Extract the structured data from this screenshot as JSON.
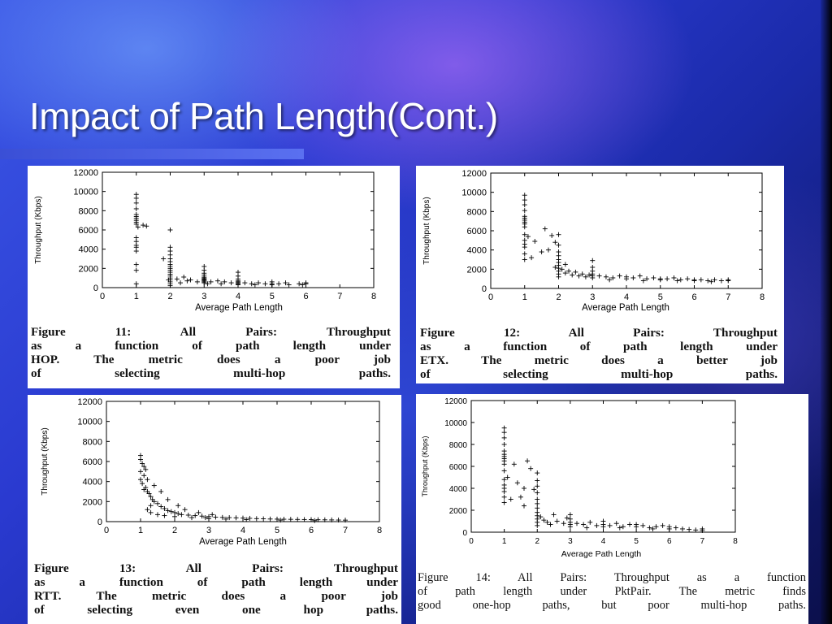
{
  "slide": {
    "title": "Impact of Path Length(Cont.)",
    "colors": {
      "title": "#ffffff",
      "rule": "#4a60e6",
      "marker": "#000000"
    }
  },
  "chart_data": [
    {
      "type": "scatter",
      "title": "",
      "xlabel": "Average Path Length",
      "ylabel": "Throughput (Kbps)",
      "xlim": [
        0,
        8
      ],
      "ylim": [
        0,
        12000
      ],
      "xticks": [
        "0",
        "1",
        "2",
        "3",
        "4",
        "5",
        "6",
        "7",
        "8"
      ],
      "yticks": [
        "0",
        "2000",
        "4000",
        "6000",
        "8000",
        "10000",
        "12000"
      ],
      "grid": false,
      "caption": [
        "Figure 11: All Pairs: Throughput",
        "as a function of path length under",
        "HOP. The metric does a poor job",
        "of selecting multi-hop paths."
      ],
      "points": [
        [
          1,
          9700
        ],
        [
          1,
          9300
        ],
        [
          1,
          8800
        ],
        [
          1,
          8200
        ],
        [
          1,
          7600
        ],
        [
          1,
          7400
        ],
        [
          1,
          7200
        ],
        [
          1,
          7000
        ],
        [
          1,
          6800
        ],
        [
          1,
          6600
        ],
        [
          1,
          5200
        ],
        [
          1,
          4800
        ],
        [
          1,
          4400
        ],
        [
          1,
          4200
        ],
        [
          1,
          3800
        ],
        [
          1,
          2400
        ],
        [
          1,
          1800
        ],
        [
          1,
          400
        ],
        [
          1.05,
          6300
        ],
        [
          1.3,
          6400
        ],
        [
          1.2,
          6500
        ],
        [
          1.8,
          3000
        ],
        [
          2,
          6000
        ],
        [
          2,
          4200
        ],
        [
          2,
          3800
        ],
        [
          2,
          3400
        ],
        [
          2,
          3000
        ],
        [
          2,
          2700
        ],
        [
          2,
          2400
        ],
        [
          2,
          2200
        ],
        [
          2,
          2000
        ],
        [
          2,
          1800
        ],
        [
          2,
          1600
        ],
        [
          2,
          1400
        ],
        [
          2,
          1200
        ],
        [
          2,
          1000
        ],
        [
          2,
          800
        ],
        [
          2,
          600
        ],
        [
          2,
          400
        ],
        [
          2,
          200
        ],
        [
          1.95,
          800
        ],
        [
          2.2,
          900
        ],
        [
          2.4,
          1100
        ],
        [
          2.6,
          800
        ],
        [
          2.8,
          600
        ],
        [
          3,
          2200
        ],
        [
          3,
          1800
        ],
        [
          3,
          1500
        ],
        [
          3,
          1300
        ],
        [
          3,
          1100
        ],
        [
          3,
          1000
        ],
        [
          3,
          900
        ],
        [
          3,
          800
        ],
        [
          3,
          700
        ],
        [
          3,
          600
        ],
        [
          3,
          500
        ],
        [
          3.2,
          600
        ],
        [
          3.4,
          700
        ],
        [
          3.5,
          400
        ],
        [
          3.6,
          600
        ],
        [
          3.8,
          500
        ],
        [
          4,
          1600
        ],
        [
          4,
          1200
        ],
        [
          4,
          900
        ],
        [
          4,
          700
        ],
        [
          4,
          600
        ],
        [
          4,
          500
        ],
        [
          4,
          400
        ],
        [
          4,
          300
        ],
        [
          4.2,
          500
        ],
        [
          4.4,
          400
        ],
        [
          4.5,
          300
        ],
        [
          4.6,
          500
        ],
        [
          4.8,
          400
        ],
        [
          5,
          600
        ],
        [
          5,
          400
        ],
        [
          5,
          300
        ],
        [
          5.2,
          400
        ],
        [
          5.4,
          500
        ],
        [
          5.5,
          300
        ],
        [
          5.8,
          400
        ],
        [
          6,
          500
        ],
        [
          6,
          400
        ],
        [
          5.9,
          300
        ],
        [
          3.1,
          400
        ],
        [
          2.3,
          500
        ],
        [
          2.5,
          700
        ]
      ]
    },
    {
      "type": "scatter",
      "title": "",
      "xlabel": "Average Path Length",
      "ylabel": "Throughput (Kbps)",
      "xlim": [
        0,
        8
      ],
      "ylim": [
        0,
        12000
      ],
      "xticks": [
        "0",
        "1",
        "2",
        "3",
        "4",
        "5",
        "6",
        "7",
        "8"
      ],
      "yticks": [
        "0",
        "2000",
        "4000",
        "6000",
        "8000",
        "10000",
        "12000"
      ],
      "grid": false,
      "caption": [
        "Figure 12: All Pairs: Throughput",
        "as a function of path length under",
        "ETX. The metric does a better job",
        "of selecting multi-hop paths."
      ],
      "points": [
        [
          1,
          9700
        ],
        [
          1,
          9200
        ],
        [
          1,
          8700
        ],
        [
          1,
          8100
        ],
        [
          1,
          7500
        ],
        [
          1,
          7300
        ],
        [
          1,
          7100
        ],
        [
          1,
          6900
        ],
        [
          1,
          6700
        ],
        [
          1,
          6400
        ],
        [
          1,
          5600
        ],
        [
          1,
          5000
        ],
        [
          1,
          4600
        ],
        [
          1,
          4300
        ],
        [
          1,
          3600
        ],
        [
          1,
          3000
        ],
        [
          1.2,
          3200
        ],
        [
          1.1,
          5400
        ],
        [
          1.3,
          4900
        ],
        [
          1.6,
          6200
        ],
        [
          1.7,
          4000
        ],
        [
          1.8,
          5500
        ],
        [
          1.9,
          4800
        ],
        [
          2,
          5600
        ],
        [
          2,
          4500
        ],
        [
          2,
          3800
        ],
        [
          2,
          3400
        ],
        [
          2,
          3000
        ],
        [
          2,
          2700
        ],
        [
          2,
          2400
        ],
        [
          2,
          2100
        ],
        [
          2,
          1800
        ],
        [
          2,
          1500
        ],
        [
          2,
          1200
        ],
        [
          2.1,
          2000
        ],
        [
          2.2,
          1600
        ],
        [
          2.3,
          1800
        ],
        [
          2.4,
          1400
        ],
        [
          2.5,
          1700
        ],
        [
          2.6,
          1300
        ],
        [
          2.7,
          1500
        ],
        [
          2.8,
          1200
        ],
        [
          2.9,
          1400
        ],
        [
          3,
          2900
        ],
        [
          3,
          2200
        ],
        [
          3,
          1800
        ],
        [
          3,
          1500
        ],
        [
          3,
          1300
        ],
        [
          3,
          1100
        ],
        [
          3.2,
          1300
        ],
        [
          3.4,
          1200
        ],
        [
          3.6,
          1100
        ],
        [
          3.8,
          1300
        ],
        [
          4,
          1200
        ],
        [
          4,
          1000
        ],
        [
          4.2,
          1100
        ],
        [
          4.4,
          1300
        ],
        [
          4.6,
          1000
        ],
        [
          4.8,
          1100
        ],
        [
          5,
          1000
        ],
        [
          5,
          900
        ],
        [
          5.2,
          1000
        ],
        [
          5.4,
          1100
        ],
        [
          5.6,
          900
        ],
        [
          5.8,
          1000
        ],
        [
          6,
          900
        ],
        [
          6,
          800
        ],
        [
          6.2,
          900
        ],
        [
          6.4,
          800
        ],
        [
          6.6,
          900
        ],
        [
          6.8,
          800
        ],
        [
          7,
          800
        ],
        [
          7,
          900
        ],
        [
          3.5,
          900
        ],
        [
          4.5,
          800
        ],
        [
          5.5,
          800
        ],
        [
          6.5,
          700
        ],
        [
          2.2,
          2500
        ],
        [
          1.5,
          3800
        ],
        [
          1.9,
          2200
        ]
      ]
    },
    {
      "type": "scatter",
      "title": "",
      "xlabel": "Average Path Length",
      "ylabel": "Throughput (Kbps)",
      "xlim": [
        0,
        8
      ],
      "ylim": [
        0,
        12000
      ],
      "xticks": [
        "0",
        "1",
        "2",
        "3",
        "4",
        "5",
        "6",
        "7",
        "8"
      ],
      "yticks": [
        "0",
        "2000",
        "4000",
        "6000",
        "8000",
        "10000",
        "12000"
      ],
      "grid": false,
      "caption": [
        "Figure 13: All Pairs: Throughput",
        "as a function of path length under",
        "RTT. The metric does a poor job",
        "of selecting even one hop paths."
      ],
      "points": [
        [
          1,
          6600
        ],
        [
          1,
          6200
        ],
        [
          1.05,
          5800
        ],
        [
          1.1,
          5500
        ],
        [
          1.15,
          5200
        ],
        [
          1,
          5000
        ],
        [
          1.1,
          4600
        ],
        [
          1.2,
          4200
        ],
        [
          1.05,
          3800
        ],
        [
          1.15,
          3400
        ],
        [
          1.1,
          3200
        ],
        [
          1.2,
          3000
        ],
        [
          1.25,
          2800
        ],
        [
          1.3,
          2500
        ],
        [
          1.35,
          2200
        ],
        [
          1.4,
          2000
        ],
        [
          1.5,
          1800
        ],
        [
          1.6,
          1500
        ],
        [
          1.7,
          1300
        ],
        [
          1.8,
          1100
        ],
        [
          1.9,
          1000
        ],
        [
          2,
          900
        ],
        [
          2.1,
          800
        ],
        [
          2.2,
          700
        ],
        [
          2.4,
          650
        ],
        [
          2.6,
          600
        ],
        [
          2.8,
          550
        ],
        [
          3,
          500
        ],
        [
          3.2,
          450
        ],
        [
          3.4,
          420
        ],
        [
          3.6,
          400
        ],
        [
          3.8,
          380
        ],
        [
          4,
          350
        ],
        [
          4.2,
          330
        ],
        [
          4.4,
          300
        ],
        [
          4.6,
          280
        ],
        [
          4.8,
          260
        ],
        [
          5,
          250
        ],
        [
          5.2,
          240
        ],
        [
          5.4,
          230
        ],
        [
          5.6,
          220
        ],
        [
          5.8,
          210
        ],
        [
          6,
          200
        ],
        [
          6.2,
          190
        ],
        [
          6.4,
          180
        ],
        [
          6.6,
          170
        ],
        [
          6.8,
          160
        ],
        [
          7,
          150
        ],
        [
          1.2,
          1200
        ],
        [
          1.3,
          900
        ],
        [
          1.5,
          700
        ],
        [
          1.7,
          600
        ],
        [
          2,
          500
        ],
        [
          2.5,
          400
        ],
        [
          3,
          300
        ],
        [
          3.5,
          250
        ],
        [
          1.6,
          3000
        ],
        [
          1.4,
          3600
        ],
        [
          1.8,
          2200
        ],
        [
          2.1,
          1600
        ],
        [
          2.3,
          1200
        ],
        [
          2.7,
          900
        ],
        [
          3.1,
          700
        ],
        [
          1.0,
          4200
        ],
        [
          1.3,
          1600
        ],
        [
          2.9,
          400
        ],
        [
          4.1,
          200
        ],
        [
          5.1,
          150
        ],
        [
          6.1,
          100
        ]
      ]
    },
    {
      "type": "scatter",
      "title": "",
      "xlabel": "Average Path Length",
      "ylabel": "Throughput (Kbps)",
      "xlim": [
        0,
        8
      ],
      "ylim": [
        0,
        12000
      ],
      "xticks": [
        "0",
        "1",
        "2",
        "3",
        "4",
        "5",
        "6",
        "7",
        "8"
      ],
      "yticks": [
        "0",
        "2000",
        "4000",
        "6000",
        "8000",
        "10000",
        "12000"
      ],
      "grid": false,
      "caption": [
        "Figure 14: All Pairs: Throughput as a function",
        "of path length under PktPair. The metric finds",
        "good one-hop paths, but poor multi-hop paths."
      ],
      "points": [
        [
          1,
          9500
        ],
        [
          1,
          9100
        ],
        [
          1,
          8600
        ],
        [
          1,
          8000
        ],
        [
          1,
          7400
        ],
        [
          1,
          7100
        ],
        [
          1,
          6900
        ],
        [
          1,
          6700
        ],
        [
          1,
          6500
        ],
        [
          1,
          6200
        ],
        [
          1,
          5600
        ],
        [
          1,
          4800
        ],
        [
          1,
          4300
        ],
        [
          1,
          4000
        ],
        [
          1,
          3700
        ],
        [
          1,
          3200
        ],
        [
          1,
          2700
        ],
        [
          1.2,
          3000
        ],
        [
          1.3,
          6200
        ],
        [
          1.4,
          4500
        ],
        [
          1.5,
          3200
        ],
        [
          1.6,
          2400
        ],
        [
          1.7,
          6500
        ],
        [
          1.8,
          5800
        ],
        [
          1.9,
          3900
        ],
        [
          2,
          5400
        ],
        [
          2,
          4700
        ],
        [
          2,
          4200
        ],
        [
          2,
          3600
        ],
        [
          2,
          3000
        ],
        [
          2,
          2600
        ],
        [
          2,
          2200
        ],
        [
          2,
          1800
        ],
        [
          2,
          1500
        ],
        [
          2,
          1200
        ],
        [
          2,
          900
        ],
        [
          2,
          600
        ],
        [
          2.1,
          1400
        ],
        [
          2.2,
          1100
        ],
        [
          2.3,
          900
        ],
        [
          2.4,
          700
        ],
        [
          2.6,
          1000
        ],
        [
          2.8,
          800
        ],
        [
          3,
          1600
        ],
        [
          3,
          1200
        ],
        [
          3,
          900
        ],
        [
          3,
          700
        ],
        [
          3,
          500
        ],
        [
          3.2,
          800
        ],
        [
          3.4,
          700
        ],
        [
          3.6,
          900
        ],
        [
          3.8,
          600
        ],
        [
          4,
          1000
        ],
        [
          4,
          700
        ],
        [
          4,
          500
        ],
        [
          4.2,
          600
        ],
        [
          4.4,
          800
        ],
        [
          4.6,
          500
        ],
        [
          4.8,
          700
        ],
        [
          5,
          700
        ],
        [
          5,
          500
        ],
        [
          5.2,
          600
        ],
        [
          5.4,
          400
        ],
        [
          5.6,
          500
        ],
        [
          5.8,
          600
        ],
        [
          6,
          500
        ],
        [
          6,
          300
        ],
        [
          6.2,
          400
        ],
        [
          6.4,
          300
        ],
        [
          6.6,
          250
        ],
        [
          6.8,
          200
        ],
        [
          7,
          150
        ],
        [
          7,
          300
        ],
        [
          3.5,
          400
        ],
        [
          4.5,
          400
        ],
        [
          5.5,
          300
        ],
        [
          1.1,
          5000
        ],
        [
          1.6,
          4000
        ],
        [
          2.5,
          1600
        ],
        [
          2.9,
          1300
        ]
      ]
    }
  ]
}
